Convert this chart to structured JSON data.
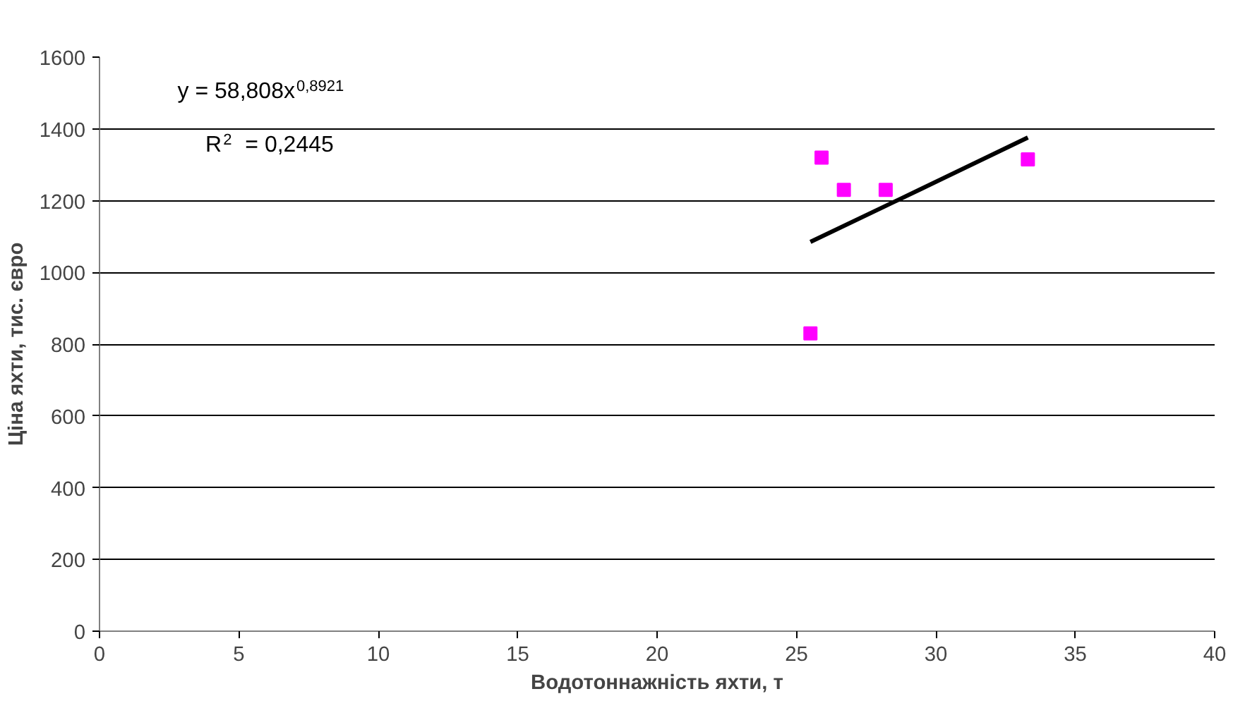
{
  "chart_data": {
    "type": "scatter",
    "xlabel": "Водотоннажність яхти, т",
    "ylabel": "Ціна яхти, тис. євро",
    "annotations": [
      "y = 58,808x$^{0,8921}$",
      "R$^{2}$ = 0,2445"
    ],
    "series": [
      {
        "color": "#ff00ff",
        "marker": "square",
        "x": [
          25.5,
          25.9,
          26.7,
          28.2,
          33.3
        ],
        "values": [
          830,
          1320,
          1230,
          1230,
          1315
        ]
      },
      {
        "type": "line",
        "color": "#000000",
        "marker": "none",
        "line_style": "solid",
        "x": [
          25.5,
          29.4,
          33.3
        ],
        "values": [
          1085,
          1230,
          1376
        ]
      }
    ],
    "xlim": [
      0,
      40
    ],
    "xticks": [
      0,
      5,
      10,
      15,
      20,
      25,
      30,
      35,
      40
    ],
    "ylim": [
      0,
      1600
    ],
    "yticks": [
      0,
      200,
      400,
      600,
      800,
      1000,
      1200,
      1400,
      1600
    ],
    "grid": "y"
  }
}
